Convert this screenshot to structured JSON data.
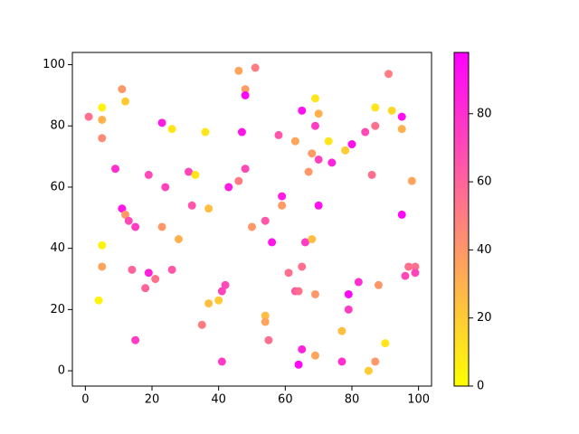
{
  "chart_data": {
    "type": "scatter",
    "x": [
      1,
      5,
      5,
      5,
      11,
      12,
      9,
      11,
      12,
      13,
      15,
      5,
      5,
      4,
      14,
      18,
      19,
      21,
      15,
      19,
      23,
      26,
      24,
      23,
      28,
      26,
      31,
      33,
      32,
      36,
      37,
      35,
      37,
      40,
      42,
      41,
      41,
      43,
      46,
      48,
      48,
      51,
      47,
      48,
      46,
      50,
      54,
      56,
      54,
      54,
      55,
      58,
      59,
      59,
      61,
      63,
      64,
      65,
      66,
      63,
      65,
      69,
      70,
      69,
      68,
      67,
      70,
      70,
      68,
      69,
      65,
      64,
      69,
      73,
      74,
      78,
      80,
      84,
      77,
      79,
      79,
      82,
      77,
      85,
      87,
      87,
      86,
      88,
      87,
      90,
      91,
      92,
      95,
      95,
      95,
      98,
      97,
      99,
      96,
      99
    ],
    "values": [
      83,
      86,
      82,
      76,
      92,
      88,
      66,
      53,
      51,
      49,
      47,
      41,
      34,
      23,
      33,
      27,
      32,
      30,
      10,
      64,
      81,
      79,
      60,
      47,
      43,
      33,
      65,
      64,
      54,
      78,
      53,
      15,
      22,
      23,
      28,
      26,
      3,
      60,
      98,
      92,
      90,
      99,
      78,
      66,
      62,
      47,
      49,
      42,
      18,
      16,
      10,
      77,
      54,
      57,
      32,
      26,
      26,
      34,
      42,
      75,
      85,
      89,
      84,
      80,
      71,
      65,
      69,
      54,
      43,
      25,
      7,
      2,
      5,
      75,
      68,
      72,
      74,
      78,
      13,
      20,
      25,
      29,
      3,
      0,
      86,
      80,
      64,
      28,
      3,
      9,
      97,
      85,
      83,
      79,
      51,
      62,
      34,
      34,
      31,
      32
    ],
    "color_values": [
      55,
      5,
      30,
      45,
      40,
      20,
      80,
      90,
      40,
      70,
      75,
      5,
      35,
      5,
      60,
      60,
      85,
      55,
      75,
      70,
      88,
      10,
      72,
      40,
      30,
      65,
      72,
      10,
      65,
      10,
      25,
      50,
      25,
      20,
      70,
      72,
      75,
      88,
      35,
      38,
      95,
      50,
      90,
      70,
      50,
      40,
      65,
      90,
      25,
      35,
      55,
      65,
      38,
      88,
      55,
      65,
      55,
      55,
      75,
      35,
      92,
      10,
      30,
      75,
      38,
      40,
      72,
      92,
      25,
      40,
      85,
      95,
      35,
      10,
      85,
      20,
      92,
      70,
      25,
      75,
      95,
      80,
      80,
      20,
      10,
      55,
      55,
      40,
      40,
      10,
      50,
      15,
      92,
      30,
      95,
      35,
      55,
      55,
      70,
      72
    ],
    "colormap": "spring_r",
    "clim": [
      0,
      98
    ],
    "cticks": [
      0,
      20,
      40,
      60,
      80
    ],
    "xlim": [
      -3.9,
      103.9
    ],
    "ylim": [
      -5,
      104
    ],
    "xticks": [
      0,
      20,
      40,
      60,
      80,
      100
    ],
    "yticks": [
      0,
      20,
      40,
      60,
      80,
      100
    ]
  }
}
